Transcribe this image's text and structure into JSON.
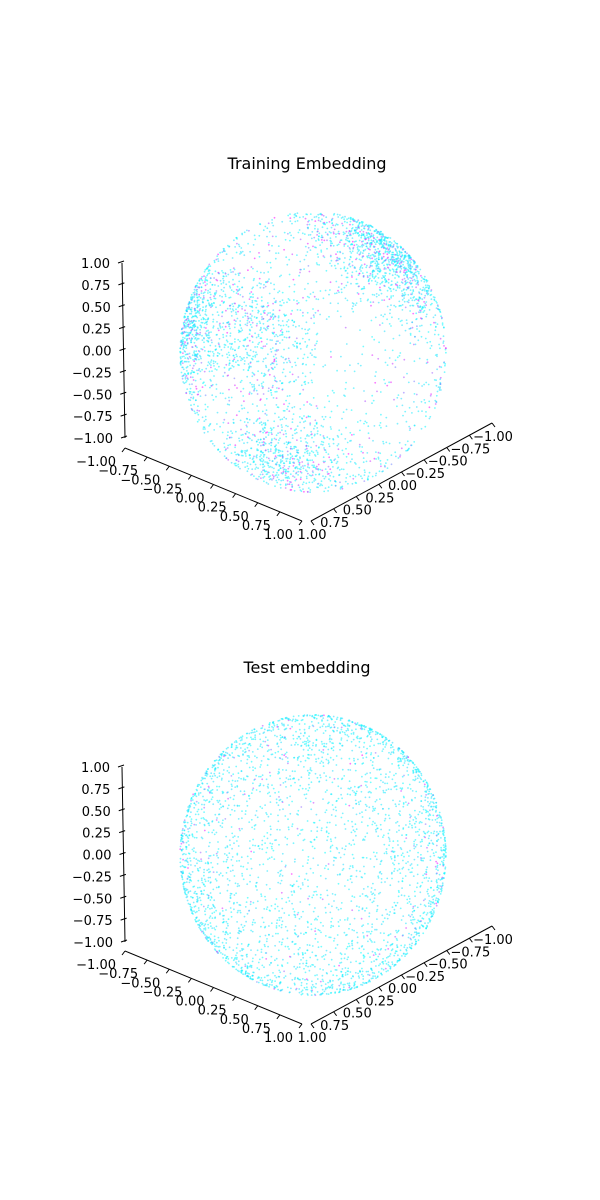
{
  "chart_data": [
    {
      "type": "scatter",
      "projection": "3d",
      "title": "Training Embedding",
      "xlim": [
        -1,
        1
      ],
      "ylim": [
        -1,
        1
      ],
      "zlim": [
        -1,
        1
      ],
      "x_ticks": [
        "−1.00",
        "−0.75",
        "−0.50",
        "−0.25",
        "0.00",
        "0.25",
        "0.50",
        "0.75",
        "1.00"
      ],
      "y_ticks": [
        "−1.00",
        "−0.75",
        "−0.50",
        "−0.25",
        "0.00",
        "0.25",
        "0.50",
        "0.75",
        "1.00"
      ],
      "z_ticks": [
        "−1.00",
        "−0.75",
        "−0.50",
        "−0.25",
        "0.00",
        "0.25",
        "0.50",
        "0.75",
        "1.00"
      ],
      "grid": false,
      "points_on": "unit sphere surface",
      "colormap": [
        "#00ffff",
        "#ff00ff"
      ],
      "distribution": "clustered",
      "clusters": [
        {
          "x": 0.05,
          "y": -0.95,
          "z": 0.25
        },
        {
          "x": -0.35,
          "y": 0.55,
          "z": -0.2
        },
        {
          "x": 0.85,
          "y": -0.25,
          "z": -0.4
        },
        {
          "x": 0.45,
          "y": 0.75,
          "z": 0.35
        },
        {
          "x": -0.3,
          "y": -0.3,
          "z": 0.9
        }
      ]
    },
    {
      "type": "scatter",
      "projection": "3d",
      "title": "Test embedding",
      "xlim": [
        -1,
        1
      ],
      "ylim": [
        -1,
        1
      ],
      "zlim": [
        -1,
        1
      ],
      "x_ticks": [
        "−1.00",
        "−0.75",
        "−0.50",
        "−0.25",
        "0.00",
        "0.25",
        "0.50",
        "0.75",
        "1.00"
      ],
      "y_ticks": [
        "−1.00",
        "−0.75",
        "−0.50",
        "−0.25",
        "0.00",
        "0.25",
        "0.50",
        "0.75",
        "1.00"
      ],
      "z_ticks": [
        "−1.00",
        "−0.75",
        "−0.50",
        "−0.25",
        "0.00",
        "0.25",
        "0.50",
        "0.75",
        "1.00"
      ],
      "grid": false,
      "points_on": "unit sphere surface",
      "colormap": [
        "#00ffff",
        "#ff00ff"
      ],
      "distribution": "uniform"
    }
  ]
}
